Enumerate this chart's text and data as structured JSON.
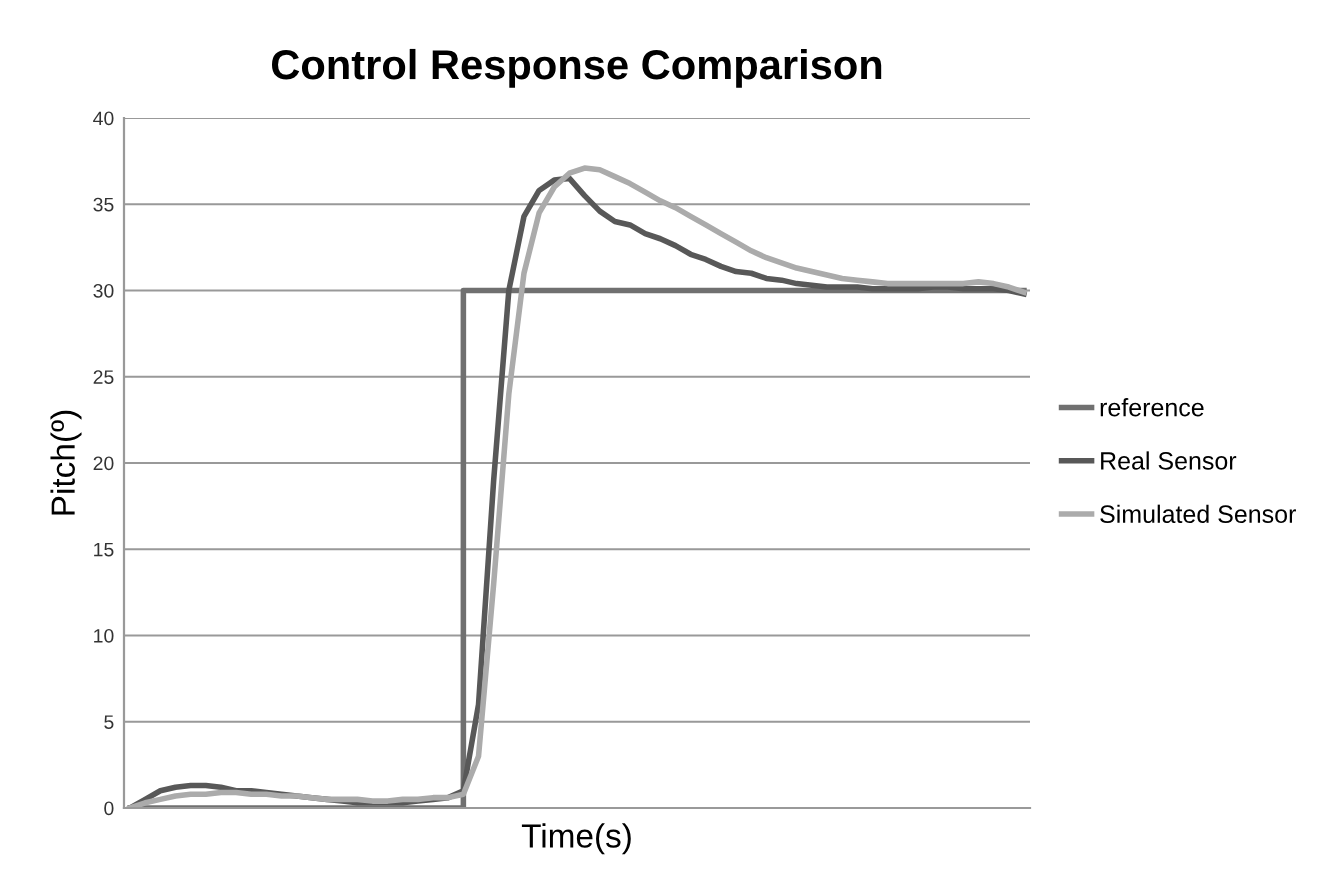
{
  "chart_data": {
    "type": "line",
    "title": "Control Response Comparison",
    "xlabel": "Time(s)",
    "ylabel": "Pitch(º)",
    "categories": [
      null,
      null,
      null,
      null,
      null,
      null,
      null,
      null,
      null,
      null,
      null,
      null,
      null,
      null,
      null,
      null,
      null,
      null,
      null,
      null,
      null,
      null,
      null,
      null,
      null,
      null,
      null,
      null,
      null,
      null,
      null,
      null,
      null,
      null,
      null,
      null,
      null,
      null,
      null,
      null,
      null,
      null,
      null,
      null,
      null,
      null,
      null,
      null,
      null,
      null,
      null,
      null,
      null,
      null,
      null,
      null,
      null,
      null,
      null,
      null
    ],
    "series": [
      {
        "name": "reference",
        "type": "step",
        "color": "#707070",
        "values": [
          0,
          0,
          0,
          0,
          0,
          0,
          0,
          0,
          0,
          0,
          0,
          0,
          0,
          0,
          0,
          0,
          0,
          0,
          0,
          0,
          0,
          0,
          30,
          30,
          30,
          30,
          30,
          30,
          30,
          30,
          30,
          30,
          30,
          30,
          30,
          30,
          30,
          30,
          30,
          30,
          30,
          30,
          30,
          30,
          30,
          30,
          30,
          30,
          30,
          30,
          30,
          30,
          30,
          30,
          30,
          30,
          30,
          30,
          30,
          30
        ]
      },
      {
        "name": "Real Sensor",
        "color": "#585858",
        "values": [
          0,
          0.5,
          1.0,
          1.2,
          1.3,
          1.3,
          1.2,
          1.0,
          1.0,
          0.9,
          0.8,
          0.7,
          0.6,
          0.5,
          0.4,
          0.3,
          0.3,
          0.3,
          0.3,
          0.4,
          0.5,
          0.6,
          1.0,
          6,
          19,
          30,
          34.3,
          35.8,
          36.4,
          36.5,
          35.5,
          34.6,
          34.0,
          33.8,
          33.3,
          33.0,
          32.6,
          32.1,
          31.8,
          31.4,
          31.1,
          31.0,
          30.7,
          30.6,
          30.4,
          30.3,
          30.2,
          30.2,
          30.2,
          30.1,
          30.1,
          30.1,
          30.1,
          30.2,
          30.2,
          30.1,
          30.1,
          30.1,
          30.0,
          29.8
        ]
      },
      {
        "name": "Simulated Sensor",
        "color": "#ababab",
        "values": [
          0,
          0.3,
          0.5,
          0.7,
          0.8,
          0.8,
          0.9,
          0.9,
          0.8,
          0.8,
          0.7,
          0.7,
          0.6,
          0.5,
          0.5,
          0.5,
          0.4,
          0.4,
          0.5,
          0.5,
          0.6,
          0.6,
          0.8,
          3,
          13,
          24,
          31,
          34.5,
          36,
          36.8,
          37.1,
          37.0,
          36.6,
          36.2,
          35.7,
          35.2,
          34.8,
          34.3,
          33.8,
          33.3,
          32.8,
          32.3,
          31.9,
          31.6,
          31.3,
          31.1,
          30.9,
          30.7,
          30.6,
          30.5,
          30.4,
          30.4,
          30.4,
          30.4,
          30.4,
          30.4,
          30.5,
          30.4,
          30.2,
          29.9
        ]
      }
    ],
    "ylim": [
      0,
      40
    ],
    "yticks": [
      0,
      5,
      10,
      15,
      20,
      25,
      30,
      35,
      40
    ],
    "grid": "y",
    "legend": "right",
    "marker": "none",
    "line_style": "solid"
  }
}
